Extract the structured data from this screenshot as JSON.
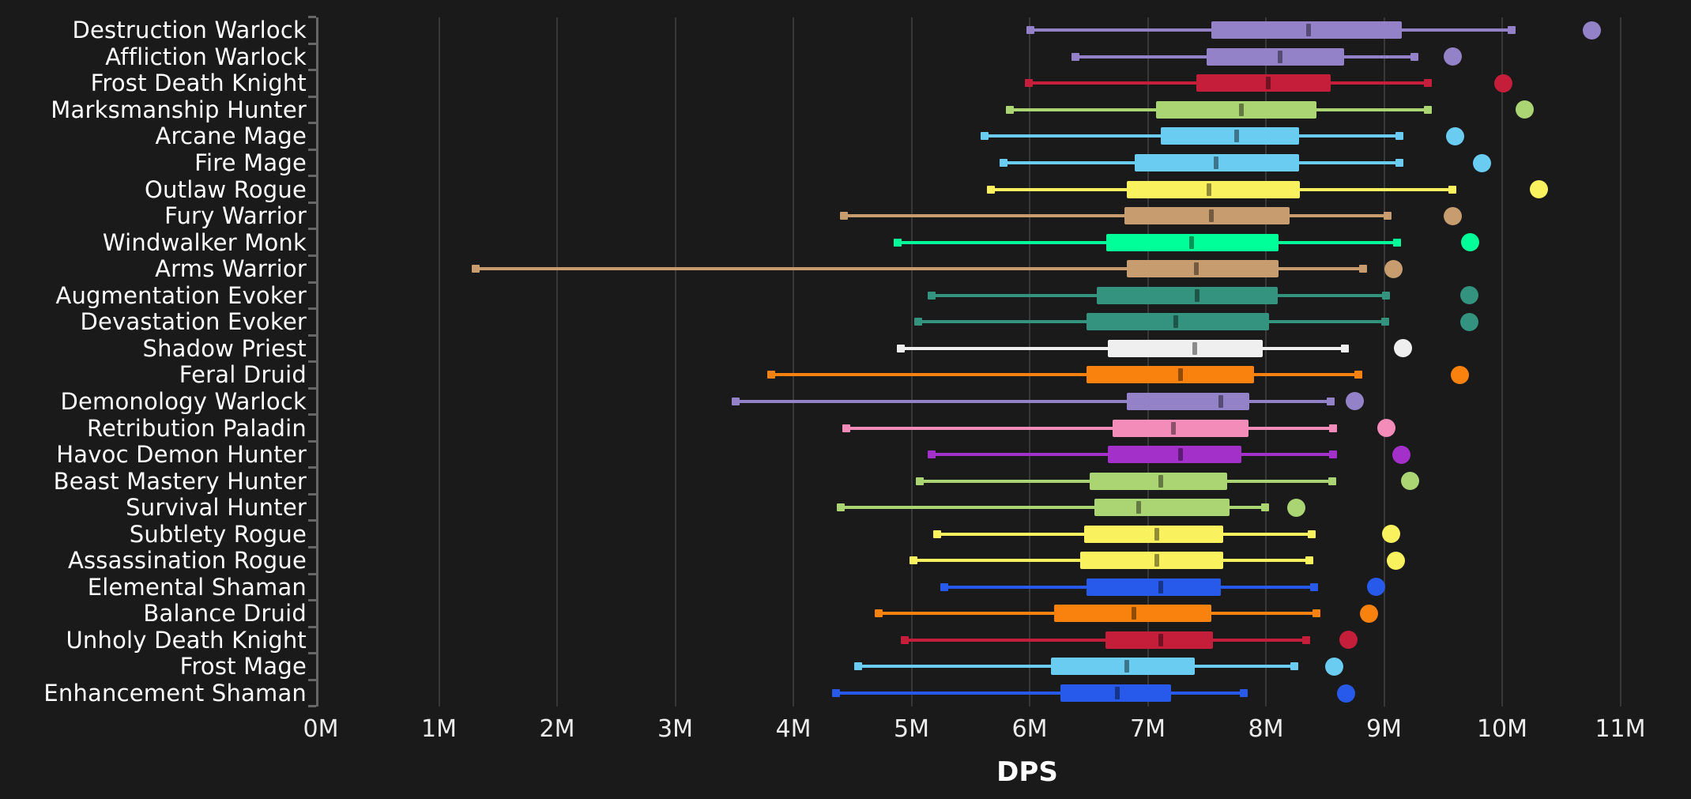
{
  "chart_data": {
    "type": "boxplot",
    "orientation": "horizontal",
    "title": "",
    "xlabel": "DPS",
    "x_unit": "M",
    "x_ticks": [
      "0M",
      "1M",
      "2M",
      "3M",
      "4M",
      "5M",
      "6M",
      "7M",
      "8M",
      "9M",
      "10M",
      "11M"
    ],
    "x_range": [
      0,
      11.6
    ],
    "grid": "vertical",
    "legend_position": "none",
    "background_color": "#1a1a1a",
    "grid_color": "#383838",
    "axis_color": "#666666",
    "label_color": "#ffffff",
    "tick_label_color": "#ececec",
    "class_colors": {
      "warlock": "#9482C9",
      "death_knight": "#C41E3A",
      "hunter": "#ABD473",
      "mage": "#69CCF0",
      "rogue": "#FAF15E",
      "warrior": "#C79C6E",
      "monk": "#00FF98",
      "evoker": "#33937F",
      "priest": "#EFEFEF",
      "druid": "#F8820D",
      "paladin": "#F48CBA",
      "demon_hunter": "#A330C9",
      "shaman": "#275AEB"
    },
    "series": [
      {
        "label": "Destruction Warlock",
        "class": "warlock",
        "whisker_low": 6.01,
        "q1": 7.54,
        "median": 8.36,
        "q3": 9.15,
        "whisker_high": 10.08,
        "outlier": 10.76
      },
      {
        "label": "Affliction Warlock",
        "class": "warlock",
        "whisker_low": 6.39,
        "q1": 7.5,
        "median": 8.12,
        "q3": 8.66,
        "whisker_high": 9.26,
        "outlier": 9.58
      },
      {
        "label": "Frost Death Knight",
        "class": "death_knight",
        "whisker_low": 5.99,
        "q1": 7.41,
        "median": 8.02,
        "q3": 8.55,
        "whisker_high": 9.37,
        "outlier": 10.01
      },
      {
        "label": "Marksmanship Hunter",
        "class": "hunter",
        "whisker_low": 5.83,
        "q1": 7.07,
        "median": 7.79,
        "q3": 8.43,
        "whisker_high": 9.37,
        "outlier": 10.19
      },
      {
        "label": "Arcane Mage",
        "class": "mage",
        "whisker_low": 5.62,
        "q1": 7.11,
        "median": 7.75,
        "q3": 8.28,
        "whisker_high": 9.13,
        "outlier": 9.6
      },
      {
        "label": "Fire Mage",
        "class": "mage",
        "whisker_low": 5.78,
        "q1": 6.89,
        "median": 7.58,
        "q3": 8.28,
        "whisker_high": 9.13,
        "outlier": 9.83
      },
      {
        "label": "Outlaw Rogue",
        "class": "rogue",
        "whisker_low": 5.67,
        "q1": 6.82,
        "median": 7.52,
        "q3": 8.29,
        "whisker_high": 9.58,
        "outlier": 10.31
      },
      {
        "label": "Fury Warrior",
        "class": "warrior",
        "whisker_low": 4.43,
        "q1": 6.8,
        "median": 7.54,
        "q3": 8.2,
        "whisker_high": 9.03,
        "outlier": 9.58
      },
      {
        "label": "Windwalker Monk",
        "class": "monk",
        "whisker_low": 4.88,
        "q1": 6.65,
        "median": 7.37,
        "q3": 8.11,
        "whisker_high": 9.11,
        "outlier": 9.73
      },
      {
        "label": "Arms Warrior",
        "class": "warrior",
        "whisker_low": 1.31,
        "q1": 6.82,
        "median": 7.41,
        "q3": 8.11,
        "whisker_high": 8.82,
        "outlier": 9.08
      },
      {
        "label": "Augmentation Evoker",
        "class": "evoker",
        "whisker_low": 5.17,
        "q1": 6.57,
        "median": 7.42,
        "q3": 8.1,
        "whisker_high": 9.02,
        "outlier": 9.72
      },
      {
        "label": "Devastation Evoker",
        "class": "evoker",
        "whisker_low": 5.06,
        "q1": 6.48,
        "median": 7.24,
        "q3": 8.03,
        "whisker_high": 9.01,
        "outlier": 9.72
      },
      {
        "label": "Shadow Priest",
        "class": "priest",
        "whisker_low": 4.91,
        "q1": 6.66,
        "median": 7.4,
        "q3": 7.97,
        "whisker_high": 8.67,
        "outlier": 9.16
      },
      {
        "label": "Feral Druid",
        "class": "druid",
        "whisker_low": 3.81,
        "q1": 6.48,
        "median": 7.28,
        "q3": 7.9,
        "whisker_high": 8.78,
        "outlier": 9.64
      },
      {
        "label": "Demonology Warlock",
        "class": "warlock",
        "whisker_low": 3.51,
        "q1": 6.82,
        "median": 7.62,
        "q3": 7.86,
        "whisker_high": 8.55,
        "outlier": 8.75
      },
      {
        "label": "Retribution Paladin",
        "class": "paladin",
        "whisker_low": 4.45,
        "q1": 6.7,
        "median": 7.22,
        "q3": 7.85,
        "whisker_high": 8.57,
        "outlier": 9.02
      },
      {
        "label": "Havoc Demon Hunter",
        "class": "demon_hunter",
        "whisker_low": 5.17,
        "q1": 6.66,
        "median": 7.28,
        "q3": 7.79,
        "whisker_high": 8.57,
        "outlier": 9.15
      },
      {
        "label": "Beast Mastery Hunter",
        "class": "hunter",
        "whisker_low": 5.07,
        "q1": 6.51,
        "median": 7.11,
        "q3": 7.67,
        "whisker_high": 8.56,
        "outlier": 9.22
      },
      {
        "label": "Survival Hunter",
        "class": "hunter",
        "whisker_low": 4.4,
        "q1": 6.55,
        "median": 6.92,
        "q3": 7.69,
        "whisker_high": 7.99,
        "outlier": 8.26
      },
      {
        "label": "Subtlety Rogue",
        "class": "rogue",
        "whisker_low": 5.22,
        "q1": 6.46,
        "median": 7.08,
        "q3": 7.64,
        "whisker_high": 8.39,
        "outlier": 9.06
      },
      {
        "label": "Assassination Rogue",
        "class": "rogue",
        "whisker_low": 5.02,
        "q1": 6.43,
        "median": 7.08,
        "q3": 7.64,
        "whisker_high": 8.37,
        "outlier": 9.1
      },
      {
        "label": "Elemental Shaman",
        "class": "shaman",
        "whisker_low": 5.28,
        "q1": 6.48,
        "median": 7.11,
        "q3": 7.62,
        "whisker_high": 8.41,
        "outlier": 8.93
      },
      {
        "label": "Balance Druid",
        "class": "druid",
        "whisker_low": 4.72,
        "q1": 6.21,
        "median": 6.88,
        "q3": 7.54,
        "whisker_high": 8.43,
        "outlier": 8.87
      },
      {
        "label": "Unholy Death Knight",
        "class": "death_knight",
        "whisker_low": 4.94,
        "q1": 6.64,
        "median": 7.11,
        "q3": 7.55,
        "whisker_high": 8.34,
        "outlier": 8.7
      },
      {
        "label": "Frost Mage",
        "class": "mage",
        "whisker_low": 4.55,
        "q1": 6.18,
        "median": 6.82,
        "q3": 7.4,
        "whisker_high": 8.24,
        "outlier": 8.58
      },
      {
        "label": "Enhancement Shaman",
        "class": "shaman",
        "whisker_low": 4.36,
        "q1": 6.26,
        "median": 6.74,
        "q3": 7.2,
        "whisker_high": 7.81,
        "outlier": 8.68
      }
    ]
  }
}
